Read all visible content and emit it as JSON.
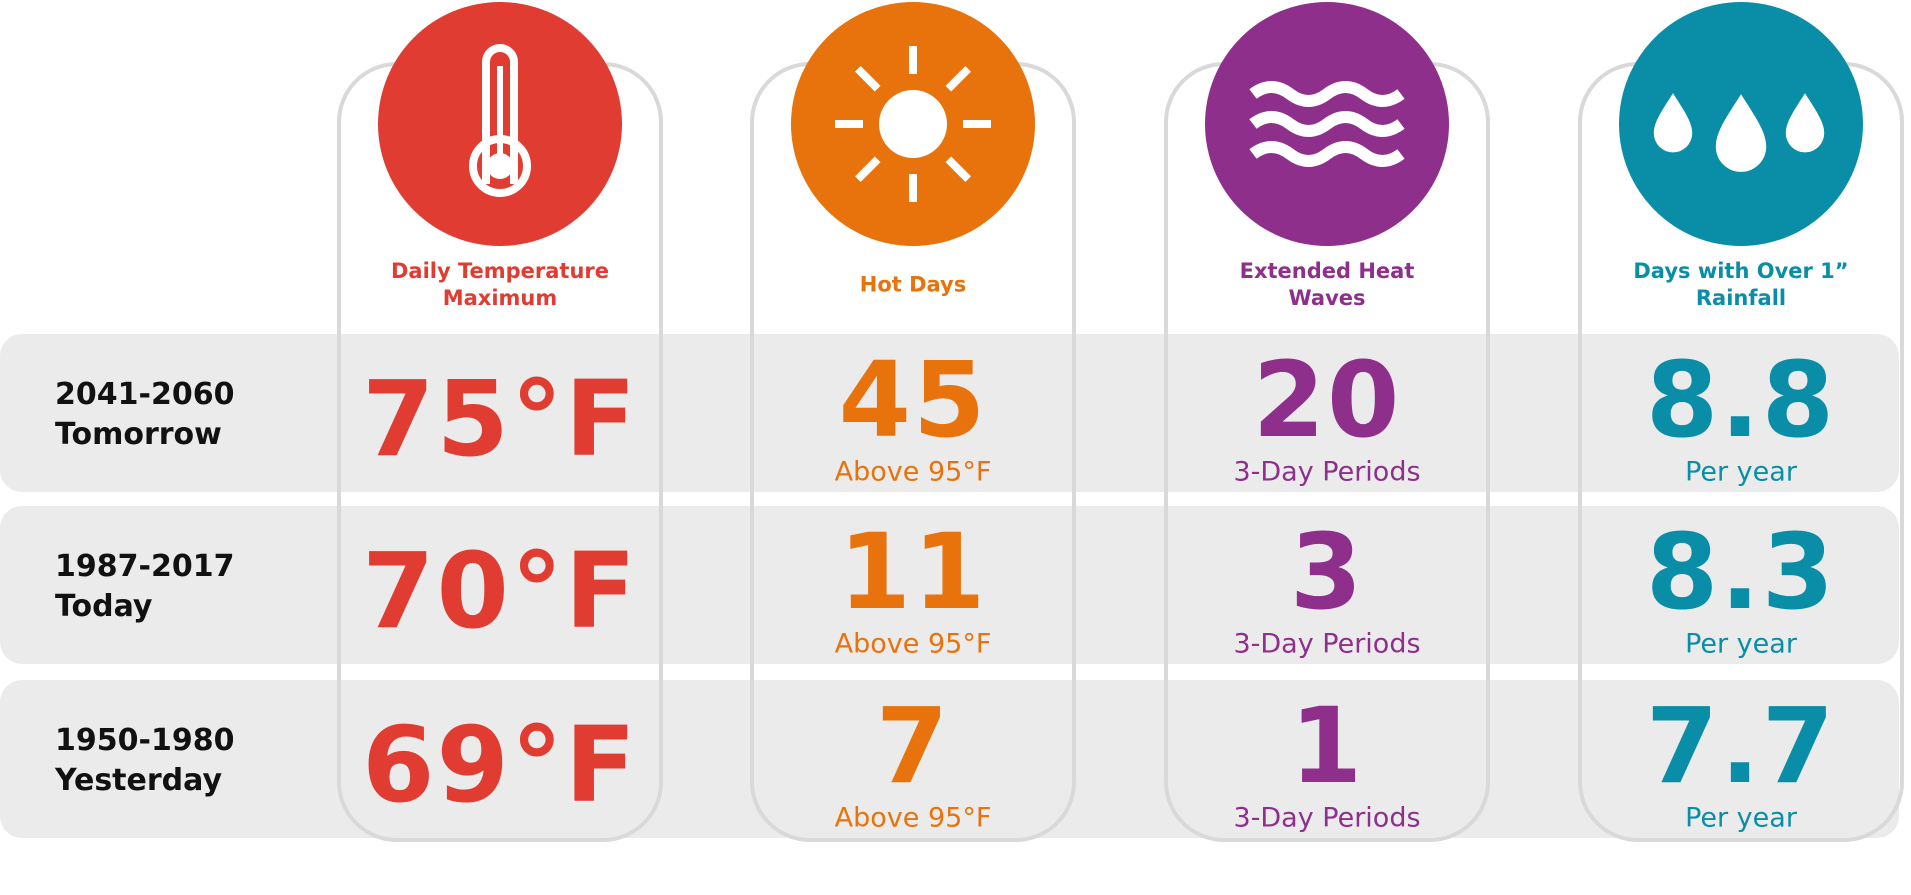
{
  "columns": [
    {
      "title": "Daily Temperature Maximum",
      "color": "#e03c31"
    },
    {
      "title": "Hot Days",
      "color": "#e8730c"
    },
    {
      "title": "Extended Heat Waves",
      "color": "#8e2f8c"
    },
    {
      "title": "Days with Over 1” Rainfall",
      "color": "#0a8ea8"
    }
  ],
  "rows": [
    {
      "period": "2041-2060",
      "label": "Tomorrow",
      "cells": [
        {
          "value": "75°F"
        },
        {
          "value": 45,
          "unit": "Above 95°F"
        },
        {
          "value": 20,
          "unit": "3-Day Periods"
        },
        {
          "value": 8.8,
          "unit": "Per year"
        }
      ]
    },
    {
      "period": "1987-2017",
      "label": "Today",
      "cells": [
        {
          "value": "70°F"
        },
        {
          "value": 11,
          "unit": "Above 95°F"
        },
        {
          "value": 3,
          "unit": "3-Day Periods"
        },
        {
          "value": 8.3,
          "unit": "Per year"
        }
      ]
    },
    {
      "period": "1950-1980",
      "label": "Yesterday",
      "cells": [
        {
          "value": "69°F"
        },
        {
          "value": 7,
          "unit": "Above 95°F"
        },
        {
          "value": 1,
          "unit": "3-Day Periods"
        },
        {
          "value": 7.7,
          "unit": "Per year"
        }
      ]
    }
  ]
}
